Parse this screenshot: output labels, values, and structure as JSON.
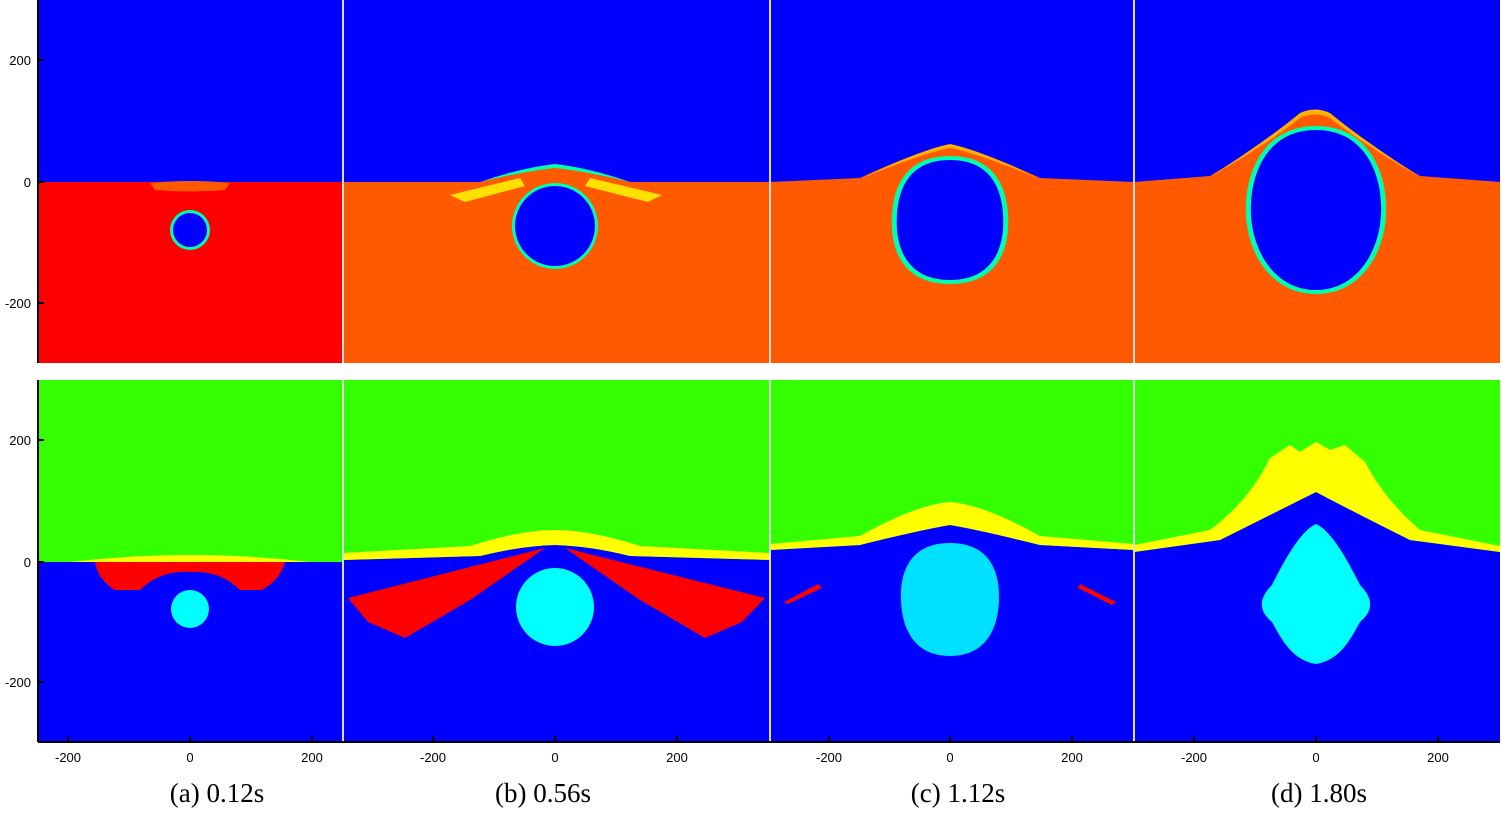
{
  "figure": {
    "colors": {
      "blue": "#0000ff",
      "red": "#ff0000",
      "orange": "#ff5a00",
      "green": "#33ff00",
      "yellow": "#ffff00",
      "cyan": "#00ffff",
      "light_cyan": "#00e0ff"
    },
    "y_ticks": [
      "200",
      "0",
      "-200"
    ],
    "x_ticks": [
      "-200",
      "0",
      "200"
    ],
    "panels": [
      {
        "id": "a",
        "caption": "(a) 0.12s"
      },
      {
        "id": "b",
        "caption": "(b) 0.56s"
      },
      {
        "id": "c",
        "caption": "(c) 1.12s"
      },
      {
        "id": "d",
        "caption": "(d) 1.80s"
      }
    ],
    "rows": [
      {
        "id": "top",
        "description_layer": "volume-fraction field (blue air, orange/red water)"
      },
      {
        "id": "bottom",
        "description_layer": "material field (green air, blue water, cyan bubble)"
      }
    ]
  }
}
